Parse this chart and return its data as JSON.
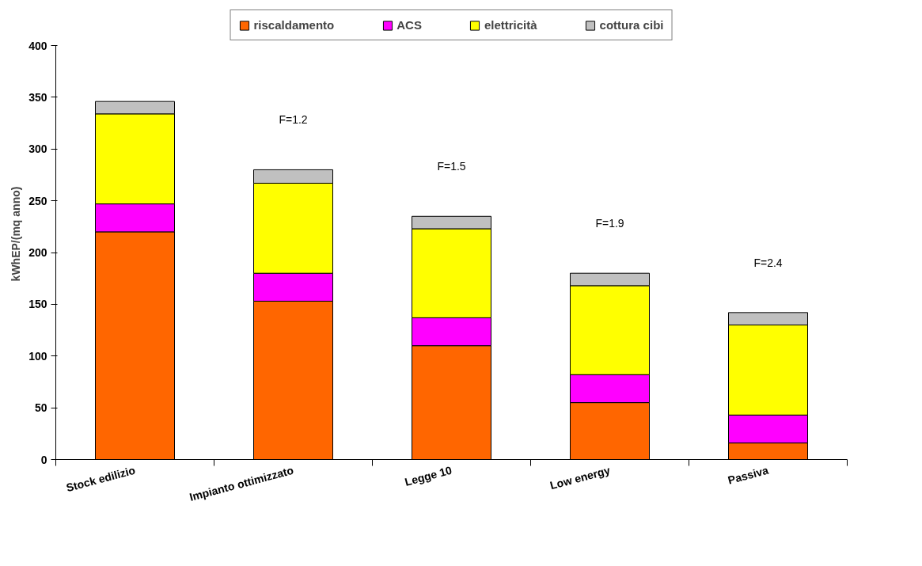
{
  "chart_data": {
    "type": "bar",
    "stacked": true,
    "ylabel": "kWhEP/(mq anno)",
    "categories": [
      "Stock edilizio",
      "Impianto ottimizzato",
      "Legge 10",
      "Low energy",
      "Passiva"
    ],
    "series": [
      {
        "name": "riscaldamento",
        "color": "#ff6600",
        "values": [
          220,
          153,
          110,
          55,
          16
        ]
      },
      {
        "name": "ACS",
        "color": "#ff00ff",
        "values": [
          27,
          27,
          27,
          27,
          27
        ]
      },
      {
        "name": "elettricità",
        "color": "#ffff00",
        "values": [
          87,
          87,
          86,
          86,
          87
        ]
      },
      {
        "name": "cottura cibi",
        "color": "#c0c0c0",
        "values": [
          12,
          13,
          12,
          12,
          12
        ]
      }
    ],
    "ylim": [
      0,
      400
    ],
    "yticks": [
      0,
      50,
      100,
      150,
      200,
      250,
      300,
      350,
      400
    ],
    "grid": false,
    "legend": "top",
    "annotations": [
      "F=1.2",
      "F=1.5",
      "F=1.9",
      "F=2.4"
    ]
  }
}
